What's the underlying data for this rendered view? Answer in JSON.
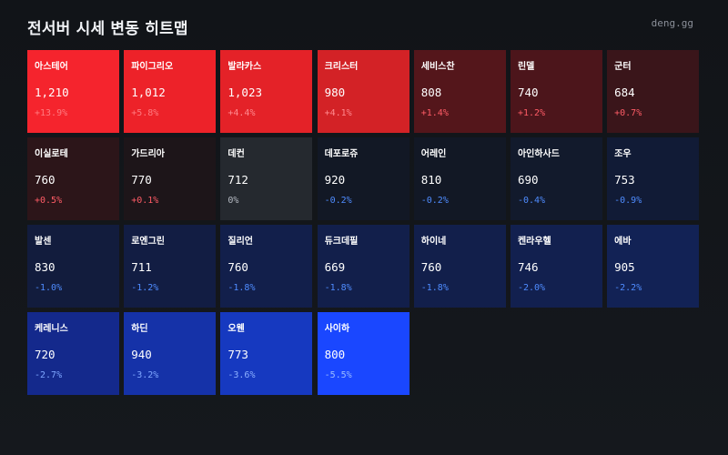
{
  "header": {
    "title": "전서버 시세 변동 히트맵",
    "brand": "deng.gg"
  },
  "tiles": [
    {
      "name": "아스테어",
      "price": "1,210",
      "change": "+13.9%",
      "bg": "#f5242d",
      "change_color": "#ff7b80"
    },
    {
      "name": "파이그리오",
      "price": "1,012",
      "change": "+5.8%",
      "bg": "#ed2229",
      "change_color": "#ff7b80"
    },
    {
      "name": "발라카스",
      "price": "1,023",
      "change": "+4.4%",
      "bg": "#e42228",
      "change_color": "#ff8a8f"
    },
    {
      "name": "크리스터",
      "price": "980",
      "change": "+4.1%",
      "bg": "#d32226",
      "change_color": "#ff8a8f"
    },
    {
      "name": "세비스찬",
      "price": "808",
      "change": "+1.4%",
      "bg": "#54161b",
      "change_color": "#ff5c66"
    },
    {
      "name": "린델",
      "price": "740",
      "change": "+1.2%",
      "bg": "#4c151b",
      "change_color": "#ff5c66"
    },
    {
      "name": "군터",
      "price": "684",
      "change": "+0.7%",
      "bg": "#3a151a",
      "change_color": "#ff5c66"
    },
    {
      "name": "이실로테",
      "price": "760",
      "change": "+0.5%",
      "bg": "#2c1519",
      "change_color": "#ff5c66"
    },
    {
      "name": "가드리아",
      "price": "770",
      "change": "+0.1%",
      "bg": "#1d1519",
      "change_color": "#ff5c66"
    },
    {
      "name": "데컨",
      "price": "712",
      "change": "0%",
      "bg": "#25292f",
      "change_color": "#b5bac2"
    },
    {
      "name": "데포로쥬",
      "price": "920",
      "change": "-0.2%",
      "bg": "#121825",
      "change_color": "#4f8cff"
    },
    {
      "name": "어레인",
      "price": "810",
      "change": "-0.2%",
      "bg": "#121825",
      "change_color": "#4f8cff"
    },
    {
      "name": "아인하사드",
      "price": "690",
      "change": "-0.4%",
      "bg": "#121a2c",
      "change_color": "#4f8cff"
    },
    {
      "name": "조우",
      "price": "753",
      "change": "-0.9%",
      "bg": "#111b36",
      "change_color": "#4f8cff"
    },
    {
      "name": "발센",
      "price": "830",
      "change": "-1.0%",
      "bg": "#121c3d",
      "change_color": "#4f8cff"
    },
    {
      "name": "로엔그린",
      "price": "711",
      "change": "-1.2%",
      "bg": "#121d43",
      "change_color": "#4f8cff"
    },
    {
      "name": "질리언",
      "price": "760",
      "change": "-1.8%",
      "bg": "#121f4b",
      "change_color": "#4f8cff"
    },
    {
      "name": "듀크데필",
      "price": "669",
      "change": "-1.8%",
      "bg": "#121f4b",
      "change_color": "#4f8cff"
    },
    {
      "name": "하이네",
      "price": "760",
      "change": "-1.8%",
      "bg": "#121f4b",
      "change_color": "#4f8cff"
    },
    {
      "name": "켄라우헬",
      "price": "746",
      "change": "-2.0%",
      "bg": "#12204f",
      "change_color": "#4f8cff"
    },
    {
      "name": "에바",
      "price": "905",
      "change": "-2.2%",
      "bg": "#122255",
      "change_color": "#4f8cff"
    },
    {
      "name": "케레니스",
      "price": "720",
      "change": "-2.7%",
      "bg": "#14298c",
      "change_color": "#7ea6ff"
    },
    {
      "name": "하딘",
      "price": "940",
      "change": "-3.2%",
      "bg": "#1532a8",
      "change_color": "#7ea6ff"
    },
    {
      "name": "오웬",
      "price": "773",
      "change": "-3.6%",
      "bg": "#1639c0",
      "change_color": "#8cb0ff"
    },
    {
      "name": "사이하",
      "price": "800",
      "change": "-5.5%",
      "bg": "#1a47ff",
      "change_color": "#9bbcff"
    }
  ]
}
